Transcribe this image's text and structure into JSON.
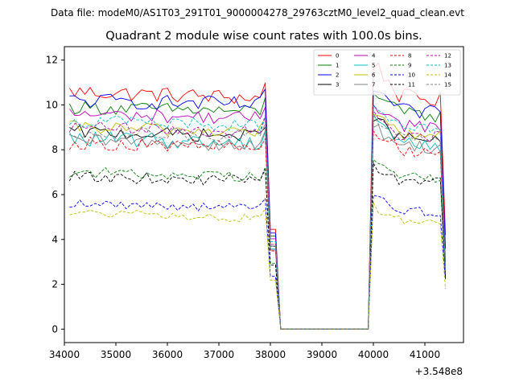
{
  "chart_data": {
    "type": "line",
    "suptitle": "Data file: modeM0/AS1T03_291T01_9000004278_29763cztM0_level2_quad_clean.evt",
    "title": "Quadrant 2 module wise count rates with 100.0s bins.",
    "xlabel": "",
    "ylabel": "",
    "x_offset_label": "+3.548e8",
    "xlim": [
      34000,
      41750
    ],
    "ylim": [
      -0.6,
      12.6
    ],
    "x_ticks": [
      34000,
      35000,
      36000,
      37000,
      38000,
      39000,
      40000,
      41000
    ],
    "y_ticks": [
      0,
      2,
      4,
      6,
      8,
      10,
      12
    ],
    "segments": [
      {
        "start": 34100,
        "end": 37900,
        "step": 100
      },
      {
        "start": 38000,
        "end": 38100,
        "step": 100
      },
      {
        "start": 38100,
        "end": 39900,
        "step": 100
      },
      {
        "start": 39900,
        "end": 40000,
        "step": 100
      },
      {
        "start": 40000,
        "end": 41300,
        "step": 100
      },
      {
        "start": 41400,
        "end": 41400,
        "step": 100
      }
    ],
    "legend_position": "upper right",
    "series": [
      {
        "name": "0",
        "color": "#ff0000",
        "dash": "solid",
        "base1": 10.6,
        "base2": 10.5,
        "noise": 0.35,
        "trend": -0.3,
        "end": 4.2,
        "peak": 1.4
      },
      {
        "name": "1",
        "color": "#008000",
        "dash": "solid",
        "base1": 9.9,
        "base2": 9.7,
        "noise": 0.3,
        "trend": -0.2,
        "end": 3.0,
        "peak": 1.0
      },
      {
        "name": "2",
        "color": "#0000ff",
        "dash": "solid",
        "base1": 10.2,
        "base2": 9.8,
        "noise": 0.35,
        "trend": -0.2,
        "end": 3.6,
        "peak": 1.0
      },
      {
        "name": "3",
        "color": "#000000",
        "dash": "solid",
        "base1": 8.8,
        "base2": 8.6,
        "noise": 0.3,
        "trend": -0.2,
        "end": 2.4,
        "peak": 0.8
      },
      {
        "name": "4",
        "color": "#bf00bf",
        "dash": "solid",
        "base1": 9.6,
        "base2": 9.2,
        "noise": 0.3,
        "trend": -0.2,
        "end": 2.8,
        "peak": 0.9
      },
      {
        "name": "5",
        "color": "#00bfbf",
        "dash": "solid",
        "base1": 8.5,
        "base2": 8.4,
        "noise": 0.35,
        "trend": -0.2,
        "end": 2.6,
        "peak": 1.2
      },
      {
        "name": "6",
        "color": "#bfbf00",
        "dash": "solid",
        "base1": 9.0,
        "base2": 8.8,
        "noise": 0.3,
        "trend": -0.2,
        "end": 2.5,
        "peak": 0.8
      },
      {
        "name": "7",
        "color": "#808080",
        "dash": "solid",
        "base1": 8.4,
        "base2": 8.3,
        "noise": 0.3,
        "trend": -0.2,
        "end": 2.4,
        "peak": 0.7
      },
      {
        "name": "8",
        "color": "#ff0000",
        "dash": "dashed",
        "base1": 8.3,
        "base2": 8.1,
        "noise": 0.3,
        "trend": -0.2,
        "end": 2.4,
        "peak": 0.7
      },
      {
        "name": "9",
        "color": "#008000",
        "dash": "dashed",
        "base1": 7.0,
        "base2": 6.9,
        "noise": 0.25,
        "trend": -0.2,
        "end": 2.2,
        "peak": 0.6
      },
      {
        "name": "10",
        "color": "#0000ff",
        "dash": "dashed",
        "base1": 5.6,
        "base2": 5.4,
        "noise": 0.2,
        "trend": -0.2,
        "end": 2.2,
        "peak": 0.5
      },
      {
        "name": "11",
        "color": "#000000",
        "dash": "dashed",
        "base1": 6.8,
        "base2": 6.7,
        "noise": 0.25,
        "trend": -0.2,
        "end": 2.3,
        "peak": 0.6
      },
      {
        "name": "12",
        "color": "#bf00bf",
        "dash": "dashed",
        "base1": 9.0,
        "base2": 8.8,
        "noise": 0.3,
        "trend": -0.2,
        "end": 2.6,
        "peak": 0.8
      },
      {
        "name": "13",
        "color": "#00bfbf",
        "dash": "dashed",
        "base1": 9.3,
        "base2": 9.0,
        "noise": 0.3,
        "trend": -0.2,
        "end": 2.6,
        "peak": 0.8
      },
      {
        "name": "14",
        "color": "#bfbf00",
        "dash": "dashed",
        "base1": 5.2,
        "base2": 5.0,
        "noise": 0.2,
        "trend": -0.3,
        "end": 1.8,
        "peak": 0.5
      },
      {
        "name": "15",
        "color": "#808080",
        "dash": "dashed",
        "base1": 8.8,
        "base2": 8.7,
        "noise": 0.3,
        "trend": -0.2,
        "end": 2.5,
        "peak": 0.7
      }
    ]
  }
}
